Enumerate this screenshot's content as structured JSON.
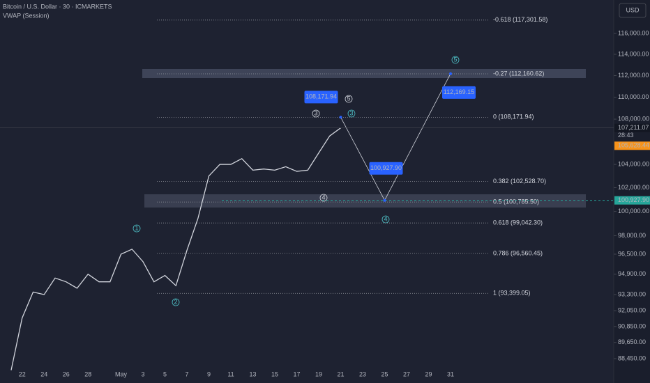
{
  "chart_data": {
    "type": "line",
    "title": "Bitcoin / U.S. Dollar · 30 · ICMARKETS",
    "subtitle": "VWAP (Session)",
    "currency": "USD",
    "log_scale": true,
    "categories": [
      null,
      "22",
      null,
      "24",
      null,
      "26",
      null,
      "28",
      null,
      null,
      "May",
      null,
      "3",
      null,
      "5",
      null,
      "7",
      null,
      "9",
      null,
      "11",
      null,
      "13",
      null,
      "15",
      null,
      "17",
      null,
      "19",
      null,
      "21",
      null,
      "23",
      null,
      "25",
      null,
      "27",
      null,
      "29",
      null,
      "31",
      null
    ],
    "series": [
      {
        "name": "Bitcoin / U.S. Dollar",
        "color": "#d1d4dc",
        "values": [
          87600,
          91500,
          93500,
          93300,
          94600,
          94300,
          93800,
          94900,
          94300,
          94300,
          96500,
          96900,
          95900,
          94300,
          94800,
          94000,
          96800,
          99400,
          103000,
          104000,
          104000,
          104500,
          103500,
          103600,
          103500,
          103800,
          103400,
          103500,
          105000,
          106500,
          107211.07,
          null,
          null,
          null,
          null,
          null,
          null,
          null,
          null,
          null,
          null,
          null
        ]
      }
    ],
    "ylim": [
      86670,
      119280
    ],
    "yticks": [
      {
        "value": 116000,
        "label": "116,000.00"
      },
      {
        "value": 114000,
        "label": "114,000.00"
      },
      {
        "value": 112000,
        "label": "112,000.00"
      },
      {
        "value": 110000,
        "label": "110,000.00"
      },
      {
        "value": 108000,
        "label": "108,000.00"
      },
      {
        "value": 104000,
        "label": "104,000.00"
      },
      {
        "value": 102000,
        "label": "102,000.00"
      },
      {
        "value": 100000,
        "label": "100,000.00"
      },
      {
        "value": 98000,
        "label": "98,000.00"
      },
      {
        "value": 96500,
        "label": "96,500.00"
      },
      {
        "value": 94900,
        "label": "94,900.00"
      },
      {
        "value": 93300,
        "label": "93,300.00"
      },
      {
        "value": 92050,
        "label": "92,050.00"
      },
      {
        "value": 90850,
        "label": "90,850.00"
      },
      {
        "value": 89650,
        "label": "89,650.00"
      },
      {
        "value": 88450,
        "label": "88,450.00"
      }
    ],
    "fib_levels": [
      {
        "value": 117301.58,
        "label": "-0.618 (117,301.58)"
      },
      {
        "value": 112160.62,
        "label": "-0.27 (112,160.62)"
      },
      {
        "value": 108171.94,
        "label": "0 (108,171.94)"
      },
      {
        "value": 102528.7,
        "label": "0.382 (102,528.70)"
      },
      {
        "value": 100785.5,
        "label": "0.5 (100,785.50)"
      },
      {
        "value": 99042.3,
        "label": "0.618 (99,042.30)"
      },
      {
        "value": 96560.45,
        "label": "0.786 (96,560.45)"
      },
      {
        "value": 93399.05,
        "label": "1 (93,399.05)"
      }
    ],
    "projection": [
      {
        "value": 108171.94,
        "label": "108,171.94",
        "at": "21"
      },
      {
        "value": 100927.9,
        "label": "100,927.90",
        "at": "25"
      },
      {
        "value": 112169.15,
        "label": "112,169.15",
        "at": "31"
      }
    ],
    "last_price": {
      "value": 107211.07,
      "label": "107,211.07"
    },
    "countdown": "28:43",
    "vwap_price": {
      "value": 105628.44,
      "label": "105,628.44",
      "color": "#f7931a"
    },
    "alert_line": {
      "value": 100927.9,
      "label": "100,927.90",
      "color": "#26a69a"
    },
    "waves": [
      "1",
      "2",
      "3",
      "4",
      "5",
      "3",
      "4",
      "5"
    ]
  }
}
